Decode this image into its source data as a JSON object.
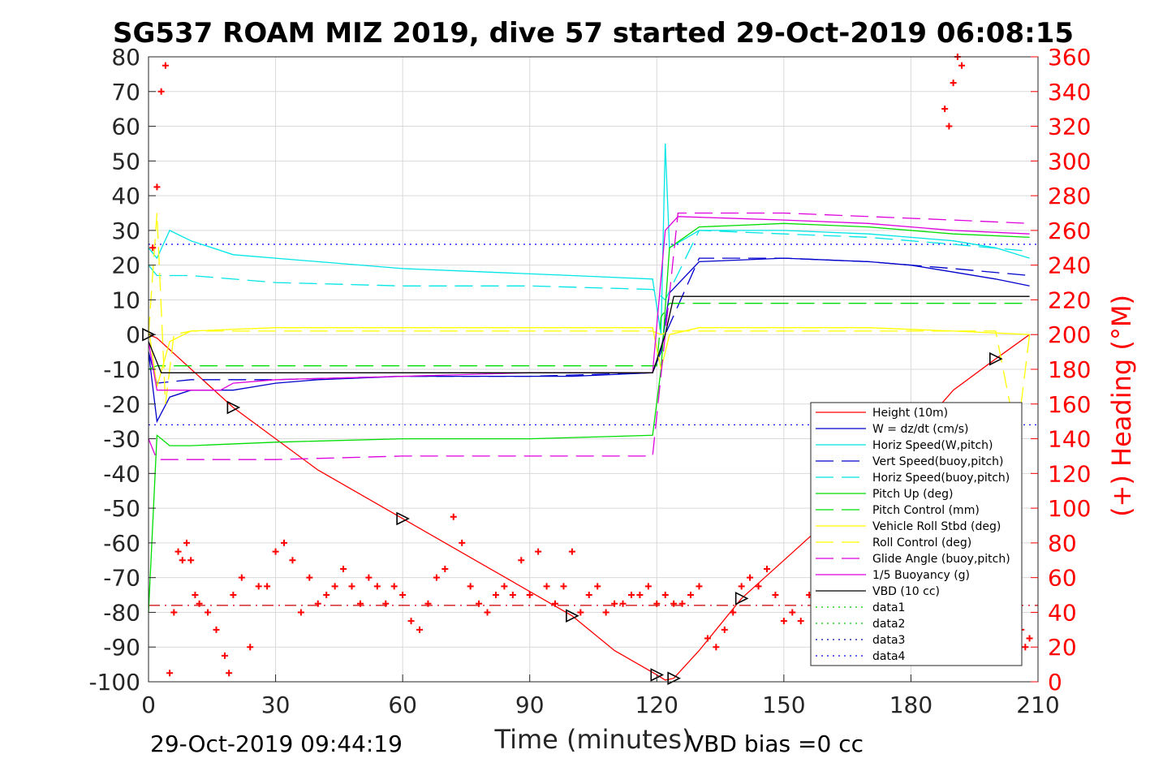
{
  "chart_data": {
    "type": "line",
    "title": "SG537 ROAM MIZ 2019, dive 57 started 29-Oct-2019 06:08:15",
    "xlabel": "Time (minutes)",
    "ylabel": "",
    "ylabel_right": "(+) Heading (°M)",
    "xlim": [
      0,
      210
    ],
    "ylim": [
      -100,
      80
    ],
    "ylim_right": [
      0,
      360
    ],
    "xticks": [
      "0",
      "30",
      "60",
      "90",
      "120",
      "150",
      "180",
      "210"
    ],
    "yticks": [
      "80",
      "70",
      "60",
      "50",
      "40",
      "30",
      "20",
      "10",
      "0",
      "-10",
      "-20",
      "-30",
      "-40",
      "-50",
      "-60",
      "-70",
      "-80",
      "-90",
      "-100"
    ],
    "yticks_right": [
      "360",
      "340",
      "320",
      "300",
      "280",
      "260",
      "240",
      "220",
      "200",
      "180",
      "160",
      "140",
      "120",
      "100",
      "80",
      "60",
      "40",
      "20",
      "0"
    ],
    "grid": true,
    "legend_position": "bottom-right",
    "footer_left": "29-Oct-2019 09:44:19",
    "footer_right": "VBD bias =0 cc",
    "series": [
      {
        "name": "Height (10m)",
        "color": "#ff0000",
        "style": "solid",
        "x": [
          0,
          2,
          20,
          40,
          60,
          80,
          100,
          110,
          120,
          122,
          124,
          130,
          140,
          150,
          160,
          170,
          180,
          190,
          200,
          208
        ],
        "y": [
          0,
          -1,
          -21,
          -39,
          -53,
          -67,
          -81,
          -91,
          -98,
          -99.5,
          -99,
          -91,
          -76,
          -65,
          -54,
          -42,
          -30,
          -16,
          -7,
          0
        ]
      },
      {
        "name": "W = dz/dt (cm/s)",
        "color": "#0000cc",
        "style": "solid",
        "x": [
          0,
          2,
          5,
          10,
          20,
          30,
          40,
          60,
          80,
          100,
          119,
          121,
          123,
          130,
          150,
          170,
          180,
          190,
          200,
          208
        ],
        "y": [
          -5,
          -25,
          -18,
          -16,
          -16,
          -14,
          -13,
          -12,
          -12,
          -12,
          -11,
          -5,
          12,
          21,
          22,
          21,
          20,
          18,
          16,
          14
        ]
      },
      {
        "name": "Horiz Speed(W,pitch)",
        "color": "#00e5e5",
        "style": "solid",
        "x": [
          0,
          2,
          5,
          10,
          20,
          30,
          40,
          60,
          80,
          100,
          119,
          121,
          122,
          123,
          130,
          150,
          170,
          180,
          190,
          200,
          208
        ],
        "y": [
          25,
          22,
          30,
          27,
          23,
          22,
          21,
          19,
          18,
          17,
          16,
          0,
          55,
          25,
          30,
          30,
          29,
          28,
          27,
          25,
          22
        ]
      },
      {
        "name": "Vert Speed(buoy,pitch)",
        "color": "#0000cc",
        "style": "dashed",
        "x": [
          0,
          2,
          10,
          30,
          60,
          90,
          119,
          122,
          130,
          150,
          170,
          190,
          208
        ],
        "y": [
          -5,
          -14,
          -13,
          -13,
          -12,
          -12,
          -11,
          0,
          22,
          22,
          21,
          19,
          17
        ]
      },
      {
        "name": "Horiz Speed(buoy,pitch)",
        "color": "#00e5e5",
        "style": "dashed",
        "x": [
          0,
          2,
          10,
          30,
          60,
          90,
          119,
          122,
          130,
          150,
          170,
          190,
          208
        ],
        "y": [
          20,
          17,
          17,
          15,
          14,
          14,
          13,
          10,
          30,
          29,
          28,
          26,
          24
        ]
      },
      {
        "name": "Pitch Up (deg)",
        "color": "#00dd00",
        "style": "solid",
        "x": [
          0,
          2,
          5,
          10,
          30,
          60,
          90,
          119,
          121,
          123,
          130,
          150,
          170,
          190,
          208
        ],
        "y": [
          -80,
          -29,
          -32,
          -32,
          -31,
          -30,
          -30,
          -29,
          -10,
          25,
          31,
          32,
          31,
          29,
          28
        ]
      },
      {
        "name": "Pitch Control (mm)",
        "color": "#00dd00",
        "style": "dashed",
        "x": [
          0,
          2,
          120,
          121,
          123,
          208
        ],
        "y": [
          -10,
          -9,
          -9,
          5,
          9,
          9
        ]
      },
      {
        "name": "Vehicle Roll Stbd (deg)",
        "color": "#ffff00",
        "style": "solid",
        "x": [
          0,
          2,
          5,
          10,
          30,
          60,
          90,
          119,
          121,
          123,
          130,
          150,
          170,
          190,
          208
        ],
        "y": [
          2,
          -15,
          -2,
          1,
          2,
          2,
          2,
          2,
          -10,
          0,
          2,
          2,
          2,
          1,
          0
        ]
      },
      {
        "name": "Roll Control (deg)",
        "color": "#ffff00",
        "style": "dashed",
        "x": [
          0,
          2,
          4,
          6,
          10,
          30,
          60,
          90,
          119,
          121,
          123,
          130,
          150,
          170,
          190,
          200,
          205,
          208
        ],
        "y": [
          0,
          35,
          -20,
          0,
          1,
          1,
          1,
          1,
          1,
          0,
          1,
          1,
          1,
          1,
          1,
          1,
          -30,
          0
        ]
      },
      {
        "name": "Glide Angle (buoy,pitch)",
        "color": "#dd00dd",
        "style": "dashed",
        "x": [
          0,
          2,
          10,
          30,
          60,
          90,
          119,
          122,
          125,
          150,
          170,
          190,
          208
        ],
        "y": [
          -30,
          -36,
          -36,
          -36,
          -35,
          -35,
          -35,
          0,
          35,
          35,
          34,
          33,
          32
        ]
      },
      {
        "name": "1/5 Buoyancy (g)",
        "color": "#dd00dd",
        "style": "solid",
        "x": [
          0,
          2,
          10,
          17,
          20,
          30,
          60,
          90,
          119,
          122,
          125,
          150,
          170,
          180,
          190,
          208
        ],
        "y": [
          -2,
          -16,
          -16,
          -16,
          -14,
          -13,
          -12,
          -11,
          -11,
          30,
          34,
          33,
          32,
          31,
          30,
          29
        ]
      },
      {
        "name": "VBD (10 cc)",
        "color": "#000000",
        "style": "solid",
        "x": [
          0,
          2,
          3,
          119,
          122,
          124,
          208
        ],
        "y": [
          -2,
          -8,
          -11,
          -11,
          0,
          11,
          11
        ]
      },
      {
        "name": "data1",
        "color": "#00cc00",
        "style": "dotted",
        "x": [],
        "y": []
      },
      {
        "name": "data2",
        "color": "#00cc00",
        "style": "dotted",
        "x": [],
        "y": []
      },
      {
        "name": "data3",
        "color": "#000099",
        "style": "dotted",
        "x": [],
        "y": []
      },
      {
        "name": "data4",
        "color": "#0000ff",
        "style": "dotted",
        "x": [],
        "y": []
      }
    ],
    "reference_lines": [
      {
        "color": "#0000ff",
        "style": "dotted",
        "y": 26
      },
      {
        "color": "#0000ff",
        "style": "dotted",
        "y": -26
      },
      {
        "color": "#cc0000",
        "style": "dash-dot",
        "y": -78
      }
    ],
    "heading_points": {
      "color": "#ff0000",
      "marker": "+",
      "axis": "right",
      "x": [
        1,
        2,
        3,
        4,
        5,
        6,
        7,
        8,
        9,
        10,
        11,
        12,
        14,
        16,
        18,
        19,
        20,
        22,
        24,
        26,
        28,
        30,
        32,
        34,
        36,
        38,
        40,
        42,
        44,
        46,
        48,
        50,
        52,
        54,
        56,
        58,
        60,
        62,
        64,
        66,
        68,
        70,
        72,
        74,
        76,
        78,
        80,
        82,
        84,
        86,
        88,
        90,
        92,
        94,
        96,
        98,
        100,
        102,
        104,
        106,
        108,
        110,
        112,
        114,
        116,
        118,
        120,
        122,
        124,
        126,
        128,
        130,
        132,
        134,
        136,
        138,
        140,
        142,
        144,
        146,
        148,
        150,
        152,
        154,
        156,
        158,
        160,
        188,
        189,
        190,
        191,
        192,
        203,
        204,
        205,
        206,
        207,
        208
      ],
      "y": [
        250,
        285,
        340,
        355,
        5,
        40,
        75,
        70,
        80,
        70,
        50,
        45,
        40,
        30,
        15,
        5,
        50,
        60,
        20,
        55,
        55,
        75,
        80,
        70,
        40,
        60,
        45,
        50,
        55,
        65,
        55,
        45,
        60,
        55,
        45,
        55,
        50,
        35,
        30,
        45,
        60,
        65,
        95,
        80,
        55,
        45,
        40,
        50,
        55,
        50,
        70,
        50,
        75,
        55,
        45,
        55,
        75,
        40,
        50,
        55,
        40,
        45,
        45,
        50,
        50,
        55,
        45,
        50,
        45,
        45,
        50,
        55,
        25,
        20,
        30,
        40,
        55,
        60,
        55,
        65,
        50,
        35,
        40,
        35,
        50,
        60,
        65,
        330,
        320,
        345,
        360,
        355,
        85,
        50,
        40,
        30,
        20,
        25
      ]
    }
  }
}
